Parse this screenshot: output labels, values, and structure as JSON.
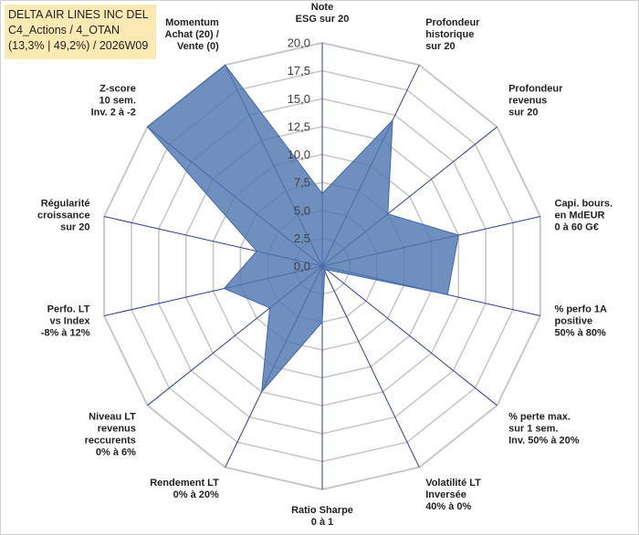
{
  "title": {
    "line1": "DELTA AIR LINES INC DEL",
    "line2": "C4_Actions / 4_OTAN",
    "line3": "(13,3% | 49,2%) / 2026W09"
  },
  "colors": {
    "series_fill": "#4f76b0",
    "series_stroke": "#3f68b0",
    "grid": "#c8c8c8",
    "title_bg": "#fde9b4"
  },
  "chart_data": {
    "type": "radar",
    "range": [
      0,
      20
    ],
    "step": 2.5,
    "tick_labels": [
      "0,0",
      "2,5",
      "5,0",
      "7,5",
      "10,0",
      "12,5",
      "15,0",
      "17,5",
      "20,0"
    ],
    "axes": [
      {
        "label": [
          "Note",
          "ESG sur 20"
        ],
        "value": 6.5
      },
      {
        "label": [
          "Profondeur",
          "historique",
          "sur 20"
        ],
        "value": 14.5
      },
      {
        "label": [
          "Profondeur",
          "revenus",
          "sur 20"
        ],
        "value": 7.5
      },
      {
        "label": [
          "Capi. bours.",
          "en MdEUR",
          "0 à 60 G€"
        ],
        "value": 12.5
      },
      {
        "label": [
          "% perfo 1A",
          "positive",
          "50% à 80%"
        ],
        "value": 11.5
      },
      {
        "label": [
          "% perte max.",
          "sur 1 sem.",
          "Inv. 50% à 20%"
        ],
        "value": 0.5
      },
      {
        "label": [
          "Volatilité LT",
          "Inversée",
          "40% à 0%"
        ],
        "value": 0.5
      },
      {
        "label": [
          "Ratio Sharpe",
          "0 à 1"
        ],
        "value": 5.0
      },
      {
        "label": [
          "Rendement LT",
          "0% à 20%"
        ],
        "value": 12.5
      },
      {
        "label": [
          "Niveau LT",
          "revenus",
          "reccurents",
          "0% à 6%"
        ],
        "value": 6.0
      },
      {
        "label": [
          "Perfo. LT",
          "vs Index",
          "-8% à 12%"
        ],
        "value": 9.0
      },
      {
        "label": [
          "Régularité",
          "croissance",
          "sur 20"
        ],
        "value": 6.0
      },
      {
        "label": [
          "Z-score",
          "10 sem.",
          "Inv. 2 à -2"
        ],
        "value": 20.0
      },
      {
        "label": [
          "Momentum",
          "Achat (20) /",
          "Vente (0)"
        ],
        "value": 20.0
      }
    ]
  }
}
